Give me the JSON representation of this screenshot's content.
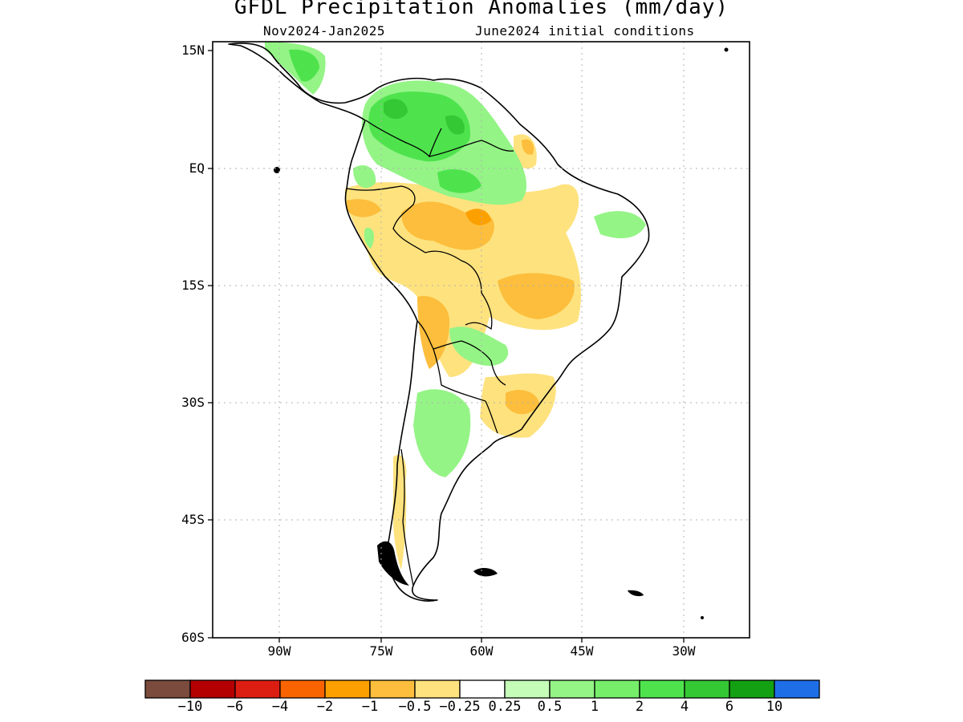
{
  "title": "GFDL Precipitation Anomalies (mm/day)",
  "subtitle_left": "Nov2024-Jan2025",
  "subtitle_right": "June2024 initial conditions",
  "y_axis_labels": [
    "15N",
    "EQ",
    "15S",
    "30S",
    "45S",
    "60S"
  ],
  "x_axis_labels": [
    "90W",
    "75W",
    "60W",
    "45W",
    "30W"
  ],
  "map": {
    "region": "South America",
    "lon_range": [
      -100,
      -20
    ],
    "lat_range": [
      -60,
      15
    ],
    "grid": "dotted",
    "anomaly_regions": [
      {
        "area": "Colombia / Venezuela / northern Amazon",
        "category": "wet",
        "level": "1 to 4"
      },
      {
        "area": "Central Brazil / Mato Grosso",
        "category": "dry",
        "level": "-1 to -0.25"
      },
      {
        "area": "Southern Brazil / Uruguay",
        "category": "dry",
        "level": "-1 to -0.25"
      },
      {
        "area": "Central Argentina",
        "category": "wet",
        "level": "0.25 to 1"
      },
      {
        "area": "Southern Chile",
        "category": "dry",
        "level": "-1 to -0.25"
      }
    ]
  },
  "colorbar": {
    "colors": [
      "#7b4b3e",
      "#b40000",
      "#dc1e12",
      "#fa6400",
      "#fca000",
      "#fcbe3c",
      "#fee27e",
      "#ffffff",
      "#c4fcb8",
      "#94f486",
      "#76ee6a",
      "#4ee34d",
      "#34c834",
      "#13a113",
      "#1e6ee8"
    ],
    "labels": [
      "-10",
      "-6",
      "-4",
      "-2",
      "-1",
      "-0.5",
      "-0.25",
      "0.25",
      "0.5",
      "1",
      "2",
      "4",
      "6",
      "10"
    ]
  }
}
